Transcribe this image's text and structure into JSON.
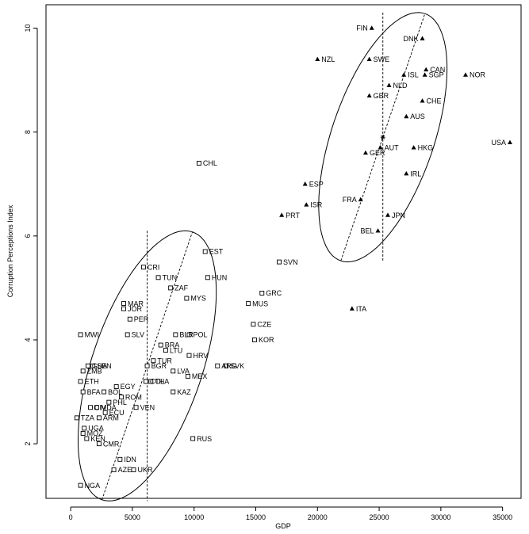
{
  "chart_data": {
    "type": "scatter",
    "xlabel": "GDP",
    "ylabel": "Corruption Perceptions Index",
    "xlim": [
      -2000,
      36500
    ],
    "ylim": [
      0.95,
      10.45
    ],
    "x_ticks": [
      0,
      5000,
      10000,
      15000,
      20000,
      25000,
      30000,
      35000
    ],
    "y_ticks": [
      2,
      4,
      6,
      8,
      10
    ],
    "grid": false,
    "legend": "none",
    "series": [
      {
        "marker": "open-square",
        "points": [
          {
            "label": "CHL",
            "x": 10400,
            "y": 7.4
          },
          {
            "label": "EST",
            "x": 10900,
            "y": 5.7
          },
          {
            "label": "CRI",
            "x": 5900,
            "y": 5.4
          },
          {
            "label": "TUN",
            "x": 7100,
            "y": 5.2
          },
          {
            "label": "HUN",
            "x": 11100,
            "y": 5.2
          },
          {
            "label": "ZAF",
            "x": 8100,
            "y": 5.0
          },
          {
            "label": "SVN",
            "x": 16900,
            "y": 5.5
          },
          {
            "label": "MYS",
            "x": 9400,
            "y": 4.8
          },
          {
            "label": "MAR",
            "x": 4300,
            "y": 4.7
          },
          {
            "label": "JOR",
            "x": 4300,
            "y": 4.6
          },
          {
            "label": "MUS",
            "x": 14400,
            "y": 4.7
          },
          {
            "label": "GRC",
            "x": 15500,
            "y": 4.9
          },
          {
            "label": "PER",
            "x": 4800,
            "y": 4.4
          },
          {
            "label": "BLR",
            "x": 8500,
            "y": 4.1
          },
          {
            "label": "POL",
            "x": 9600,
            "y": 4.1
          },
          {
            "label": "CZE",
            "x": 14800,
            "y": 4.3
          },
          {
            "label": "KOR",
            "x": 14900,
            "y": 4.0
          },
          {
            "label": "MWI",
            "x": 800,
            "y": 4.1
          },
          {
            "label": "SLV",
            "x": 4600,
            "y": 4.1
          },
          {
            "label": "BRA",
            "x": 7300,
            "y": 3.9
          },
          {
            "label": "LTU",
            "x": 7700,
            "y": 3.8
          },
          {
            "label": "TUR",
            "x": 6700,
            "y": 3.6
          },
          {
            "label": "HRV",
            "x": 9600,
            "y": 3.7
          },
          {
            "label": "SVK",
            "x": 12600,
            "y": 3.5
          },
          {
            "label": "BGR",
            "x": 6200,
            "y": 3.5
          },
          {
            "label": "GHA",
            "x": 1400,
            "y": 3.5
          },
          {
            "label": "SEN",
            "x": 1800,
            "y": 3.5
          },
          {
            "label": "ZMB",
            "x": 1000,
            "y": 3.4
          },
          {
            "label": "LVA",
            "x": 8300,
            "y": 3.4
          },
          {
            "label": "ARG",
            "x": 11900,
            "y": 3.5
          },
          {
            "label": "MEX",
            "x": 9500,
            "y": 3.3
          },
          {
            "label": "ETH",
            "x": 800,
            "y": 3.2
          },
          {
            "label": "THA",
            "x": 6500,
            "y": 3.2
          },
          {
            "label": "COL",
            "x": 6100,
            "y": 3.2
          },
          {
            "label": "BFA",
            "x": 1000,
            "y": 3.0
          },
          {
            "label": "EGY",
            "x": 3700,
            "y": 3.1
          },
          {
            "label": "KAZ",
            "x": 8300,
            "y": 3.0
          },
          {
            "label": "BOL",
            "x": 2700,
            "y": 3.0
          },
          {
            "label": "ROM",
            "x": 4100,
            "y": 2.9
          },
          {
            "label": "CIV",
            "x": 1600,
            "y": 2.7
          },
          {
            "label": "PHL",
            "x": 3100,
            "y": 2.8
          },
          {
            "label": "MDA",
            "x": 2100,
            "y": 2.7
          },
          {
            "label": "VEN",
            "x": 5300,
            "y": 2.7
          },
          {
            "label": "ECU",
            "x": 2800,
            "y": 2.6
          },
          {
            "label": "ARM",
            "x": 2300,
            "y": 2.5
          },
          {
            "label": "TZA",
            "x": 500,
            "y": 2.5
          },
          {
            "label": "UGA",
            "x": 1100,
            "y": 2.3
          },
          {
            "label": "MOZ",
            "x": 1000,
            "y": 2.2
          },
          {
            "label": "KEN",
            "x": 1300,
            "y": 2.1
          },
          {
            "label": "CMR",
            "x": 2300,
            "y": 2.0
          },
          {
            "label": "RUS",
            "x": 9900,
            "y": 2.1
          },
          {
            "label": "IDN",
            "x": 4000,
            "y": 1.7
          },
          {
            "label": "AZE",
            "x": 3500,
            "y": 1.5
          },
          {
            "label": "UKR",
            "x": 5100,
            "y": 1.5
          },
          {
            "label": "NGA",
            "x": 800,
            "y": 1.2
          }
        ]
      },
      {
        "marker": "filled-triangle",
        "points": [
          {
            "label": "FIN",
            "x": 24400,
            "y": 10.0
          },
          {
            "label": "DNK",
            "x": 28500,
            "y": 9.8
          },
          {
            "label": "NZL",
            "x": 20000,
            "y": 9.4
          },
          {
            "label": "SWE",
            "x": 24200,
            "y": 9.4
          },
          {
            "label": "CAN",
            "x": 28800,
            "y": 9.2
          },
          {
            "label": "ISL",
            "x": 27000,
            "y": 9.1
          },
          {
            "label": "NOR",
            "x": 32000,
            "y": 9.1
          },
          {
            "label": "NLD",
            "x": 25800,
            "y": 8.9
          },
          {
            "label": "SGP",
            "x": 28700,
            "y": 9.1
          },
          {
            "label": "GBR",
            "x": 24200,
            "y": 8.7
          },
          {
            "label": "CHE",
            "x": 28500,
            "y": 8.6
          },
          {
            "label": "AUS",
            "x": 27200,
            "y": 8.3
          },
          {
            "label": "USA",
            "x": 35600,
            "y": 7.8
          },
          {
            "label": "GER",
            "x": 23900,
            "y": 7.6
          },
          {
            "label": "AUT",
            "x": 25100,
            "y": 7.7
          },
          {
            "label": "HKG",
            "x": 27800,
            "y": 7.7
          },
          {
            "label": "IRL",
            "x": 27200,
            "y": 7.2
          },
          {
            "label": "ESP",
            "x": 19000,
            "y": 7.0
          },
          {
            "label": "FRA",
            "x": 23500,
            "y": 6.7
          },
          {
            "label": "ISR",
            "x": 19100,
            "y": 6.6
          },
          {
            "label": "PRT",
            "x": 17100,
            "y": 6.4
          },
          {
            "label": "JPN",
            "x": 25700,
            "y": 6.4
          },
          {
            "label": "BEL",
            "x": 24900,
            "y": 6.1
          },
          {
            "label": "ITA",
            "x": 22800,
            "y": 4.6
          }
        ]
      }
    ],
    "ellipses": [
      {
        "center": [
          6200,
          3.5
        ],
        "sd_x": 2800,
        "sd_y": 1.3,
        "corr": 0.55
      },
      {
        "center": [
          25300,
          7.9
        ],
        "sd_x": 2600,
        "sd_y": 1.2,
        "corr": 0.55
      }
    ]
  }
}
